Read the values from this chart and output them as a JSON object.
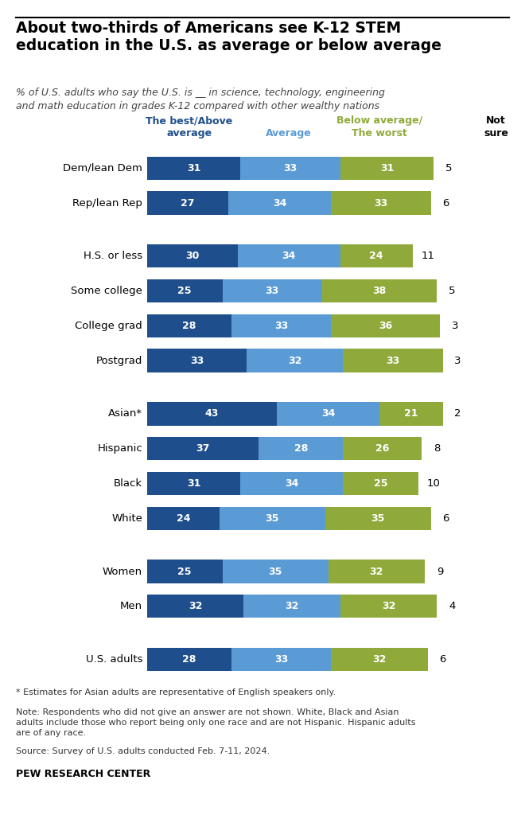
{
  "title": "About two-thirds of Americans see K-12 STEM\neducation in the U.S. as average or below average",
  "subtitle": "% of U.S. adults who say the U.S. is __ in science, technology, engineering\nand math education in grades K-12 compared with other wealthy nations",
  "categories": [
    "U.S. adults",
    "Men",
    "Women",
    "White",
    "Black",
    "Hispanic",
    "Asian*",
    "Postgrad",
    "College grad",
    "Some college",
    "H.S. or less",
    "Rep/lean Rep",
    "Dem/lean Dem"
  ],
  "values_best": [
    28,
    32,
    25,
    24,
    31,
    37,
    43,
    33,
    28,
    25,
    30,
    27,
    31
  ],
  "values_avg": [
    33,
    32,
    35,
    35,
    34,
    28,
    34,
    32,
    33,
    33,
    34,
    34,
    33
  ],
  "values_below": [
    32,
    32,
    32,
    35,
    25,
    26,
    21,
    33,
    36,
    38,
    24,
    33,
    31
  ],
  "values_not_sure": [
    6,
    4,
    9,
    6,
    10,
    8,
    2,
    3,
    3,
    5,
    11,
    6,
    5
  ],
  "color_best": "#1f4e8c",
  "color_avg": "#5b9bd5",
  "color_below": "#8faa3a",
  "header_best_color": "#1f4e8c",
  "header_avg_color": "#5b9bd5",
  "header_below_color": "#8faa3a",
  "header_notsure_color": "#000000",
  "footnote1": "* Estimates for Asian adults are representative of English speakers only.",
  "footnote2": "Note: Respondents who did not give an answer are not shown. White, Black and Asian\nadults include those who report being only one race and are not Hispanic. Hispanic adults\nare of any race.",
  "footnote3": "Source: Survey of U.S. adults conducted Feb. 7-11, 2024.",
  "source": "PEW RESEARCH CENTER",
  "background_color": "#ffffff",
  "group_breaks_after": [
    0,
    2,
    6,
    10
  ]
}
